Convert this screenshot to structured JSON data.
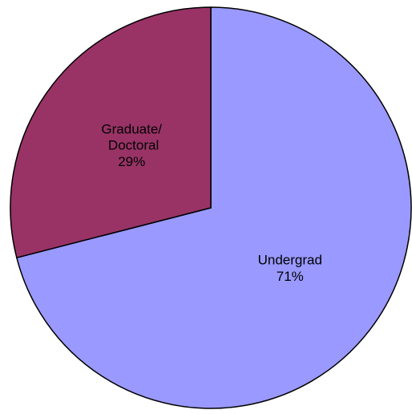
{
  "chart_data": {
    "type": "pie",
    "categories": [
      "Undergrad",
      "Graduate/ Doctoral"
    ],
    "values": [
      71,
      29
    ],
    "value_labels": [
      "71%",
      "29%"
    ],
    "colors": [
      "#9999ff",
      "#993366"
    ]
  }
}
